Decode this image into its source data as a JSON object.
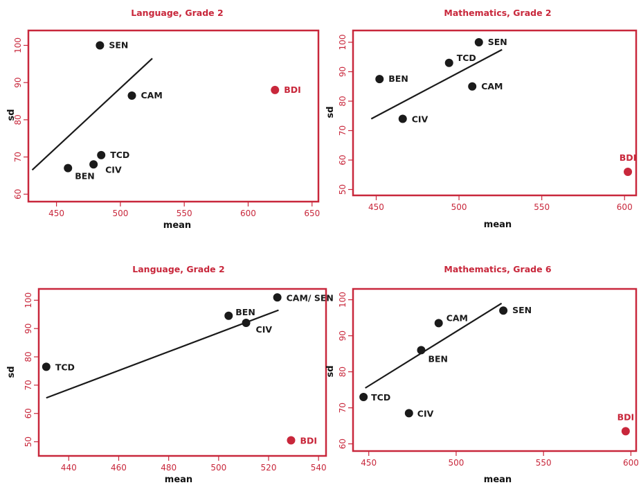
{
  "colors": {
    "accent": "#c8273b",
    "point": "#1a1a1a",
    "line": "#1a1a1a"
  },
  "chart_data": [
    {
      "type": "scatter",
      "title": "Language, Grade 2",
      "xlabel": "mean",
      "ylabel": "sd",
      "xlim": [
        428,
        655
      ],
      "ylim": [
        58,
        104
      ],
      "xticks": [
        450,
        500,
        550,
        600,
        650
      ],
      "yticks": [
        60,
        70,
        80,
        90,
        100
      ],
      "grid": false,
      "points": [
        {
          "label": "SEN",
          "x": 484,
          "y": 100
        },
        {
          "label": "CAM",
          "x": 509,
          "y": 86.5
        },
        {
          "label": "BDI",
          "x": 621,
          "y": 88,
          "highlight": true
        },
        {
          "label": "TCD",
          "x": 485,
          "y": 70.5
        },
        {
          "label": "CIV",
          "x": 479,
          "y": 68
        },
        {
          "label": "BEN",
          "x": 459,
          "y": 67
        }
      ],
      "fit_line": [
        {
          "x": 431,
          "y": 66.5
        },
        {
          "x": 525,
          "y": 96.5
        }
      ]
    },
    {
      "type": "scatter",
      "title": "Mathematics, Grade 2",
      "xlabel": "mean",
      "ylabel": "sd",
      "xlim": [
        436,
        607
      ],
      "ylim": [
        48,
        104
      ],
      "xticks": [
        450,
        500,
        550,
        600
      ],
      "yticks": [
        50,
        60,
        70,
        80,
        90,
        100
      ],
      "grid": false,
      "points": [
        {
          "label": "SEN",
          "x": 512,
          "y": 100
        },
        {
          "label": "TCD",
          "x": 494,
          "y": 93
        },
        {
          "label": "BEN",
          "x": 452,
          "y": 87.5
        },
        {
          "label": "CAM",
          "x": 508,
          "y": 85
        },
        {
          "label": "CIV",
          "x": 466,
          "y": 74
        },
        {
          "label": "BDI",
          "x": 602,
          "y": 56,
          "highlight": true
        }
      ],
      "fit_line": [
        {
          "x": 447,
          "y": 74
        },
        {
          "x": 526,
          "y": 97.5
        }
      ]
    },
    {
      "type": "scatter",
      "title": "Language, Grade 2",
      "xlabel": "mean",
      "ylabel": "sd",
      "xlim": [
        428,
        543
      ],
      "ylim": [
        45,
        104
      ],
      "xticks": [
        440,
        460,
        480,
        500,
        520,
        540
      ],
      "yticks": [
        50,
        60,
        70,
        80,
        90,
        100
      ],
      "grid": false,
      "points": [
        {
          "label": "CAM/ SEN",
          "x": 523.5,
          "y": 101
        },
        {
          "label": "BEN",
          "x": 504,
          "y": 94.5
        },
        {
          "label": "CIV",
          "x": 511,
          "y": 92
        },
        {
          "label": "TCD",
          "x": 431,
          "y": 76.5
        },
        {
          "label": "BDI",
          "x": 529,
          "y": 50.5,
          "highlight": true
        }
      ],
      "fit_line": [
        {
          "x": 431,
          "y": 65.5
        },
        {
          "x": 524,
          "y": 96.5
        }
      ]
    },
    {
      "type": "scatter",
      "title": "Mathematics, Grade 6",
      "xlabel": "mean",
      "ylabel": "sd",
      "xlim": [
        441,
        603
      ],
      "ylim": [
        58,
        103
      ],
      "xticks": [
        450,
        500,
        550,
        600
      ],
      "yticks": [
        60,
        70,
        80,
        90,
        100
      ],
      "grid": false,
      "points": [
        {
          "label": "SEN",
          "x": 527,
          "y": 97
        },
        {
          "label": "CAM",
          "x": 490,
          "y": 93.5
        },
        {
          "label": "BEN",
          "x": 480,
          "y": 86
        },
        {
          "label": "TCD",
          "x": 447,
          "y": 73
        },
        {
          "label": "CIV",
          "x": 473,
          "y": 68.5
        },
        {
          "label": "BDI",
          "x": 597,
          "y": 63.5,
          "highlight": true
        }
      ],
      "fit_line": [
        {
          "x": 448,
          "y": 75.5
        },
        {
          "x": 526,
          "y": 99
        }
      ]
    }
  ]
}
